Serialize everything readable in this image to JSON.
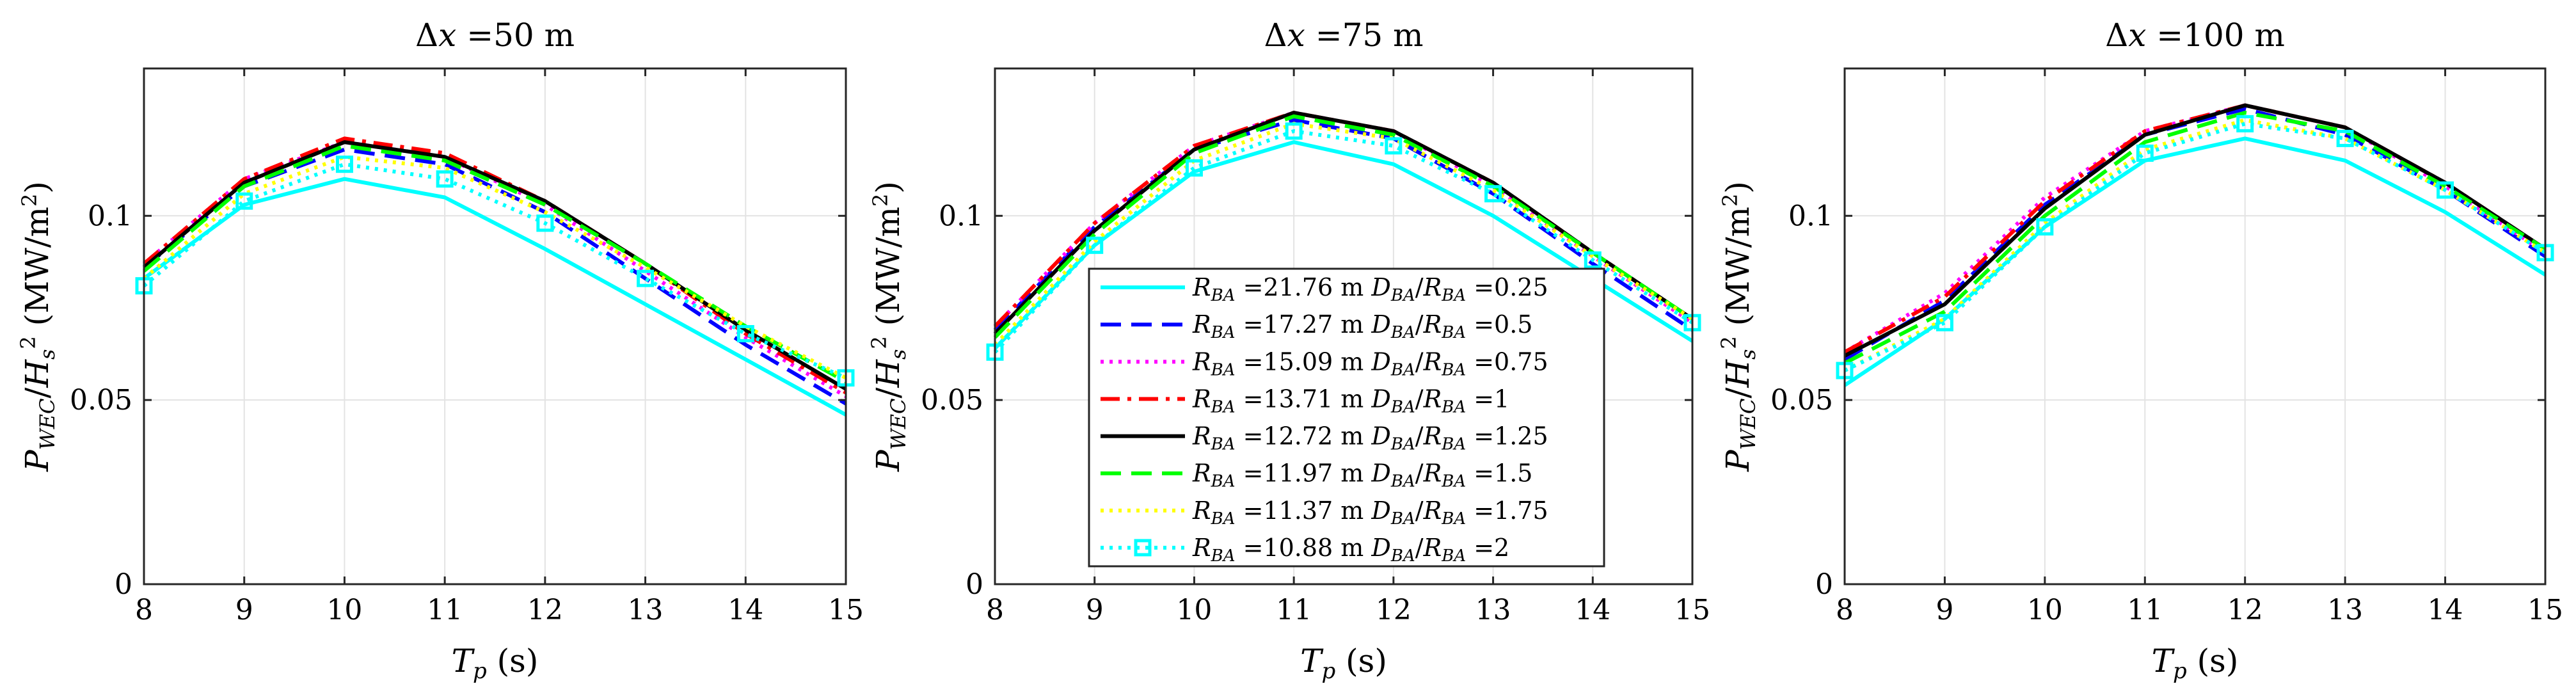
{
  "chart_data": [
    {
      "type": "line",
      "title": "Δx =50 m",
      "xlabel": "T_p (s)",
      "ylabel": "P_WEC/H_s^2 (MW/m^2)",
      "xlim": [
        8,
        15
      ],
      "ylim": [
        0,
        0.14
      ],
      "xticks": [
        8,
        9,
        10,
        11,
        12,
        13,
        14,
        15
      ],
      "yticks": [
        0,
        0.05,
        0.1
      ],
      "ytick_labels": [
        "0",
        "0.05",
        "0.1"
      ],
      "grid": true,
      "x": [
        8,
        9,
        10,
        11,
        12,
        13,
        14,
        15
      ],
      "series": [
        {
          "name": "R_BA =21.76 m D_BA/R_BA =0.25",
          "values": [
            0.083,
            0.103,
            0.11,
            0.105,
            0.091,
            0.076,
            0.061,
            0.046
          ]
        },
        {
          "name": "R_BA =17.27 m D_BA/R_BA =0.5",
          "values": [
            0.086,
            0.108,
            0.118,
            0.114,
            0.101,
            0.083,
            0.065,
            0.049
          ]
        },
        {
          "name": "R_BA =15.09 m D_BA/R_BA =0.75",
          "values": [
            0.087,
            0.11,
            0.12,
            0.116,
            0.103,
            0.085,
            0.067,
            0.051
          ]
        },
        {
          "name": "R_BA =13.71 m D_BA/R_BA =1",
          "values": [
            0.087,
            0.11,
            0.121,
            0.117,
            0.104,
            0.087,
            0.068,
            0.052
          ]
        },
        {
          "name": "R_BA =12.72 m D_BA/R_BA =1.25",
          "values": [
            0.086,
            0.109,
            0.12,
            0.116,
            0.104,
            0.087,
            0.069,
            0.053
          ]
        },
        {
          "name": "R_BA =11.97 m D_BA/R_BA =1.5",
          "values": [
            0.085,
            0.108,
            0.119,
            0.115,
            0.103,
            0.087,
            0.07,
            0.055
          ]
        },
        {
          "name": "R_BA =11.37 m D_BA/R_BA =1.75",
          "values": [
            0.083,
            0.106,
            0.116,
            0.113,
            0.101,
            0.086,
            0.07,
            0.056
          ]
        },
        {
          "name": "R_BA =10.88 m D_BA/R_BA =2",
          "values": [
            0.081,
            0.104,
            0.114,
            0.11,
            0.098,
            0.083,
            0.068,
            0.056
          ]
        }
      ]
    },
    {
      "type": "line",
      "title": "Δx =75 m",
      "xlabel": "T_p (s)",
      "ylabel": "P_WEC/H_s^2 (MW/m^2)",
      "xlim": [
        8,
        15
      ],
      "ylim": [
        0,
        0.14
      ],
      "xticks": [
        8,
        9,
        10,
        11,
        12,
        13,
        14,
        15
      ],
      "yticks": [
        0,
        0.05,
        0.1
      ],
      "ytick_labels": [
        "0",
        "0.05",
        "0.1"
      ],
      "grid": true,
      "x": [
        8,
        9,
        10,
        11,
        12,
        13,
        14,
        15
      ],
      "series": [
        {
          "name": "R_BA =21.76 m D_BA/R_BA =0.25",
          "values": [
            0.064,
            0.092,
            0.112,
            0.12,
            0.114,
            0.1,
            0.083,
            0.066
          ]
        },
        {
          "name": "R_BA =17.27 m D_BA/R_BA =0.5",
          "values": [
            0.069,
            0.097,
            0.118,
            0.126,
            0.121,
            0.106,
            0.087,
            0.069
          ]
        },
        {
          "name": "R_BA =15.09 m D_BA/R_BA =0.75",
          "values": [
            0.07,
            0.098,
            0.119,
            0.128,
            0.123,
            0.108,
            0.089,
            0.071
          ]
        },
        {
          "name": "R_BA =13.71 m D_BA/R_BA =1",
          "values": [
            0.07,
            0.098,
            0.119,
            0.128,
            0.123,
            0.109,
            0.09,
            0.072
          ]
        },
        {
          "name": "R_BA =12.72 m D_BA/R_BA =1.25",
          "values": [
            0.068,
            0.096,
            0.118,
            0.128,
            0.123,
            0.109,
            0.09,
            0.072
          ]
        },
        {
          "name": "R_BA =11.97 m D_BA/R_BA =1.5",
          "values": [
            0.067,
            0.095,
            0.117,
            0.127,
            0.122,
            0.108,
            0.09,
            0.072
          ]
        },
        {
          "name": "R_BA =11.37 m D_BA/R_BA =1.75",
          "values": [
            0.065,
            0.093,
            0.115,
            0.125,
            0.121,
            0.107,
            0.089,
            0.072
          ]
        },
        {
          "name": "R_BA =10.88 m D_BA/R_BA =2",
          "values": [
            0.063,
            0.092,
            0.113,
            0.123,
            0.119,
            0.106,
            0.088,
            0.071
          ]
        }
      ]
    },
    {
      "type": "line",
      "title": "Δx =100 m",
      "xlabel": "T_p (s)",
      "ylabel": "P_WEC/H_s^2 (MW/m^2)",
      "xlim": [
        8,
        15
      ],
      "ylim": [
        0,
        0.14
      ],
      "xticks": [
        8,
        9,
        10,
        11,
        12,
        13,
        14,
        15
      ],
      "yticks": [
        0,
        0.05,
        0.1
      ],
      "ytick_labels": [
        "0",
        "0.05",
        "0.1"
      ],
      "grid": true,
      "x": [
        8,
        9,
        10,
        11,
        12,
        13,
        14,
        15
      ],
      "series": [
        {
          "name": "R_BA =21.76 m D_BA/R_BA =0.25",
          "values": [
            0.054,
            0.072,
            0.097,
            0.115,
            0.121,
            0.115,
            0.101,
            0.084
          ]
        },
        {
          "name": "R_BA =17.27 m D_BA/R_BA =0.5",
          "values": [
            0.061,
            0.077,
            0.103,
            0.122,
            0.129,
            0.122,
            0.107,
            0.089
          ]
        },
        {
          "name": "R_BA =15.09 m D_BA/R_BA =0.75",
          "values": [
            0.063,
            0.079,
            0.105,
            0.123,
            0.13,
            0.124,
            0.108,
            0.09
          ]
        },
        {
          "name": "R_BA =13.71 m D_BA/R_BA =1",
          "values": [
            0.063,
            0.078,
            0.104,
            0.123,
            0.13,
            0.124,
            0.109,
            0.091
          ]
        },
        {
          "name": "R_BA =12.72 m D_BA/R_BA =1.25",
          "values": [
            0.062,
            0.076,
            0.102,
            0.122,
            0.13,
            0.124,
            0.109,
            0.091
          ]
        },
        {
          "name": "R_BA =11.97 m D_BA/R_BA =1.5",
          "values": [
            0.06,
            0.074,
            0.1,
            0.12,
            0.128,
            0.123,
            0.108,
            0.091
          ]
        },
        {
          "name": "R_BA =11.37 m D_BA/R_BA =1.75",
          "values": [
            0.058,
            0.072,
            0.098,
            0.118,
            0.126,
            0.121,
            0.107,
            0.09
          ]
        },
        {
          "name": "R_BA =10.88 m D_BA/R_BA =2",
          "values": [
            0.058,
            0.071,
            0.097,
            0.117,
            0.125,
            0.121,
            0.107,
            0.09
          ]
        }
      ]
    }
  ],
  "legend": {
    "placement": "inside-center (middle panel)",
    "entries": [
      {
        "r": "=21.76 m",
        "d": "=0.25"
      },
      {
        "r": "=17.27 m",
        "d": "=0.5"
      },
      {
        "r": "=15.09 m",
        "d": "=0.75"
      },
      {
        "r": "=13.71 m",
        "d": "=1"
      },
      {
        "r": "=12.72 m",
        "d": "=1.25"
      },
      {
        "r": "=11.97 m",
        "d": "=1.5"
      },
      {
        "r": "=11.37 m",
        "d": "=1.75"
      },
      {
        "r": "=10.88 m",
        "d": "=2"
      }
    ]
  },
  "series_styles": [
    {
      "color": "#00FFFF",
      "dash": "solid",
      "marker": "none"
    },
    {
      "color": "#0000FF",
      "dash": "dashed",
      "marker": "none"
    },
    {
      "color": "#FF00FF",
      "dash": "dotted",
      "marker": "none"
    },
    {
      "color": "#FF0000",
      "dash": "dashdot",
      "marker": "none"
    },
    {
      "color": "#000000",
      "dash": "solid",
      "marker": "none"
    },
    {
      "color": "#00FF00",
      "dash": "dashed",
      "marker": "none"
    },
    {
      "color": "#FFFF00",
      "dash": "dotted",
      "marker": "none"
    },
    {
      "color": "#00FFFF",
      "dash": "dotted",
      "marker": "square"
    }
  ]
}
